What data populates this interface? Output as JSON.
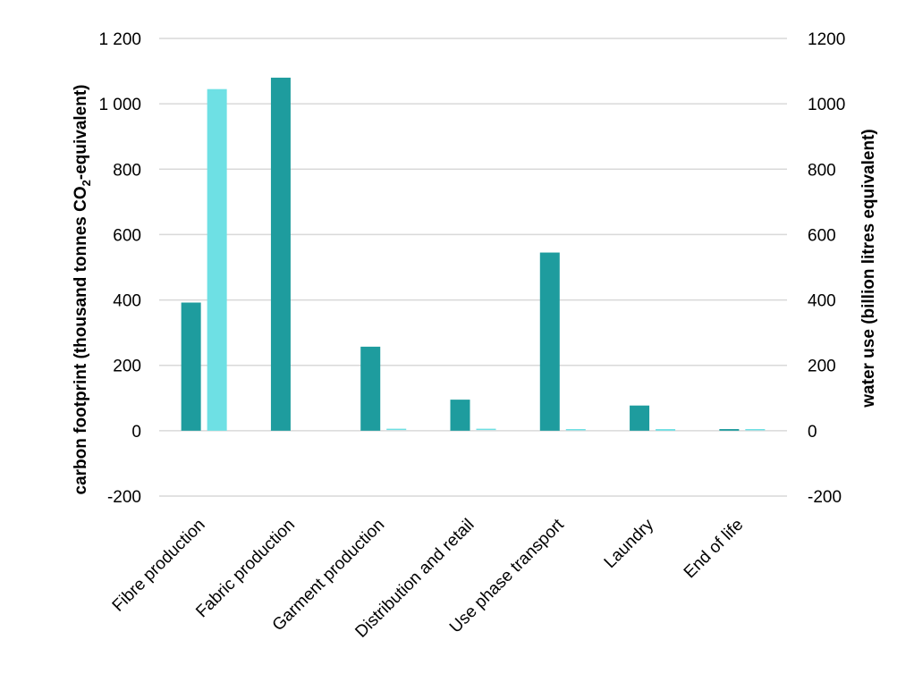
{
  "chart_data": {
    "type": "bar",
    "categories": [
      "Fibre production",
      "Fabric production",
      "Garment production",
      "Distribution and retail",
      "Use phase transport",
      "Laundry",
      "End of life"
    ],
    "series": [
      {
        "axis": "left",
        "color": "#1e9c9e",
        "values": [
          392,
          1080,
          257,
          95,
          545,
          77,
          5
        ]
      },
      {
        "axis": "right",
        "color": "#6ee0e4",
        "values": [
          1045,
          0,
          2,
          2,
          1,
          5,
          1
        ]
      }
    ],
    "y_left": {
      "label_main": "carbon footprint (thousand tonnes CO",
      "label_sub": "2",
      "label_tail": "-equivalent)",
      "range": [
        -200,
        1200
      ],
      "ticks": [
        -200,
        0,
        200,
        400,
        600,
        800,
        1000,
        1200
      ],
      "tick_labels": [
        "-200",
        "0",
        "200",
        "400",
        "600",
        "800",
        "1 000",
        "1 200"
      ]
    },
    "y_right": {
      "label": "water use (billion litres equivalent)",
      "range": [
        -200,
        1200
      ],
      "ticks": [
        -200,
        0,
        200,
        400,
        600,
        800,
        1000,
        1200
      ],
      "tick_labels": [
        "-200",
        "0",
        "200",
        "400",
        "600",
        "800",
        "1000",
        "1200"
      ]
    },
    "grid": true,
    "legend": "none",
    "colors": {
      "grid": "#d9d9d9",
      "text": "#000000"
    }
  }
}
